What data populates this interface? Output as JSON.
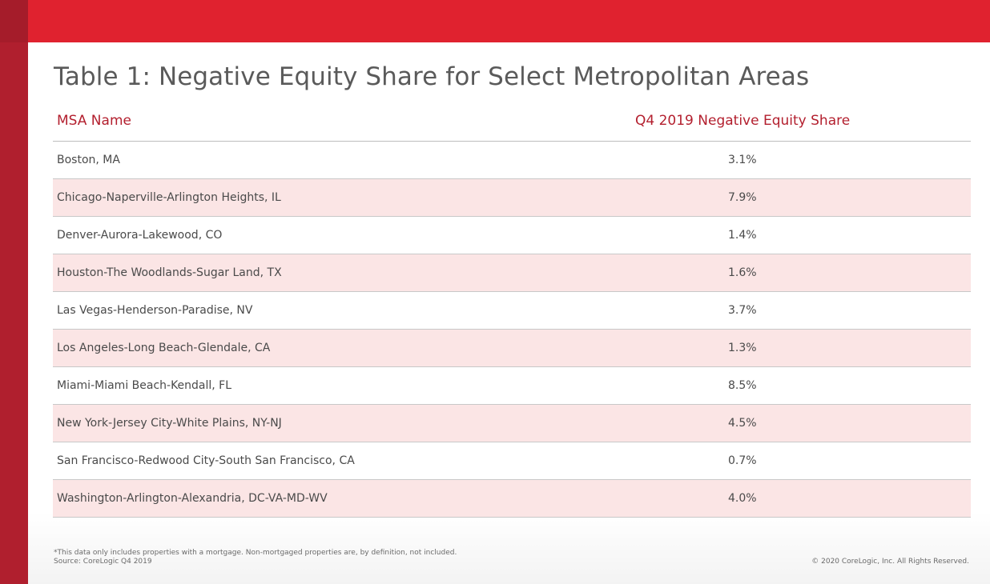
{
  "title": "Table 1: Negative Equity Share for Select Metropolitan Areas",
  "columns": {
    "msa": "MSA Name",
    "share": "Q4 2019  Negative Equity Share"
  },
  "rows": [
    {
      "name": "Boston, MA",
      "value": "3.1%"
    },
    {
      "name": "Chicago-Naperville-Arlington Heights, IL",
      "value": "7.9%"
    },
    {
      "name": "Denver-Aurora-Lakewood, CO",
      "value": "1.4%"
    },
    {
      "name": "Houston-The Woodlands-Sugar Land, TX",
      "value": "1.6%"
    },
    {
      "name": "Las Vegas-Henderson-Paradise, NV",
      "value": "3.7%"
    },
    {
      "name": "Los Angeles-Long Beach-Glendale, CA",
      "value": "1.3%"
    },
    {
      "name": "Miami-Miami Beach-Kendall, FL",
      "value": "8.5%"
    },
    {
      "name": "New York-Jersey City-White Plains, NY-NJ",
      "value": "4.5%"
    },
    {
      "name": "San Francisco-Redwood City-South San Francisco, CA",
      "value": "0.7%"
    },
    {
      "name": "Washington-Arlington-Alexandria, DC-VA-MD-WV",
      "value": "4.0%"
    }
  ],
  "footnote": {
    "note": "*This data only includes properties with a mortgage. Non-mortgaged properties are, by definition, not included.",
    "source": "Source: CoreLogic Q4 2019"
  },
  "copyright": "© 2020 CoreLogic, Inc. All Rights Reserved.",
  "colors": {
    "brand_red": "#e0222f",
    "dark_red": "#b01f2e",
    "row_tint": "#fbe5e5"
  }
}
